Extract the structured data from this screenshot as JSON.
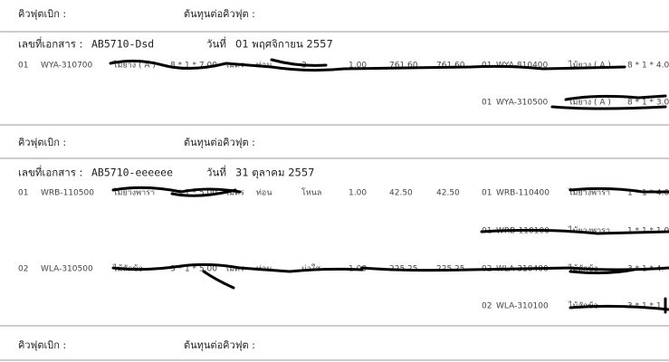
{
  "sections": [
    {
      "header": {
        "withdraw": "คิวฟุตเบิก :",
        "cost": "ต้นทุนต่อคิวฟุต :"
      },
      "doc": {
        "number_label": "เลขที่เอกสาร :",
        "number": "AB5710-Dsd",
        "date_label": "วันที่",
        "date": "01 พฤศจิกายน 2557"
      },
      "rows": [
        [
          "01",
          "WYA-310700",
          "ไม้ยาง ( A )",
          "8 * 1 * 7.00",
          "เมตร",
          "ท่อน",
          "3",
          "1.00",
          "761.60",
          "761.60",
          "01",
          "WYA-810400",
          "ไม้ยาง ( A )",
          "8 * 1 * 4.0"
        ],
        [
          "01",
          "WYA-310500",
          "ไม้ยาง ( A )",
          "8 * 1 * 3.0"
        ]
      ]
    },
    {
      "header": {
        "withdraw": "คิวฟุตเบิก :",
        "cost": "ต้นทุนต่อคิวฟุต :"
      },
      "doc": {
        "number_label": "เลขที่เอกสาร :",
        "number": "AB5710-eeeeee",
        "date_label": "วันที่",
        "date": "31 ตุลาคม 2557"
      },
      "rows": [
        [
          "01",
          "WRB-110500",
          "ไม้ยางพารา",
          "1 * 1 * 5.00",
          "เมตร",
          "ท่อน",
          "โหนล",
          "1.00",
          "42.50",
          "42.50",
          "01",
          "WRB-110400",
          "ไม้ยางพารา",
          "1 * 1 * 4.0"
        ],
        [
          "01",
          "WRB-110100",
          "ไม้ยางพารา",
          "1 * 1 * 1.0"
        ],
        [
          "02",
          "WLA-310500",
          "ไม้สักข้อ",
          "3 * 1 * 5.00",
          "เมตร",
          "ท่อน",
          "ม่าใส",
          "1.00",
          "225.25",
          "225.25",
          "02",
          "WLA-310400",
          "ไม้สักข้อ",
          "3 * 1 * 4."
        ],
        [
          "02",
          "WLA-310100",
          "ไม้สักข้อ",
          "3 * 1 * 1"
        ]
      ]
    },
    {
      "header": {
        "withdraw": "คิวฟุตเบิก :",
        "cost": "ต้นทุนต่อคิวฟุต :"
      }
    }
  ]
}
